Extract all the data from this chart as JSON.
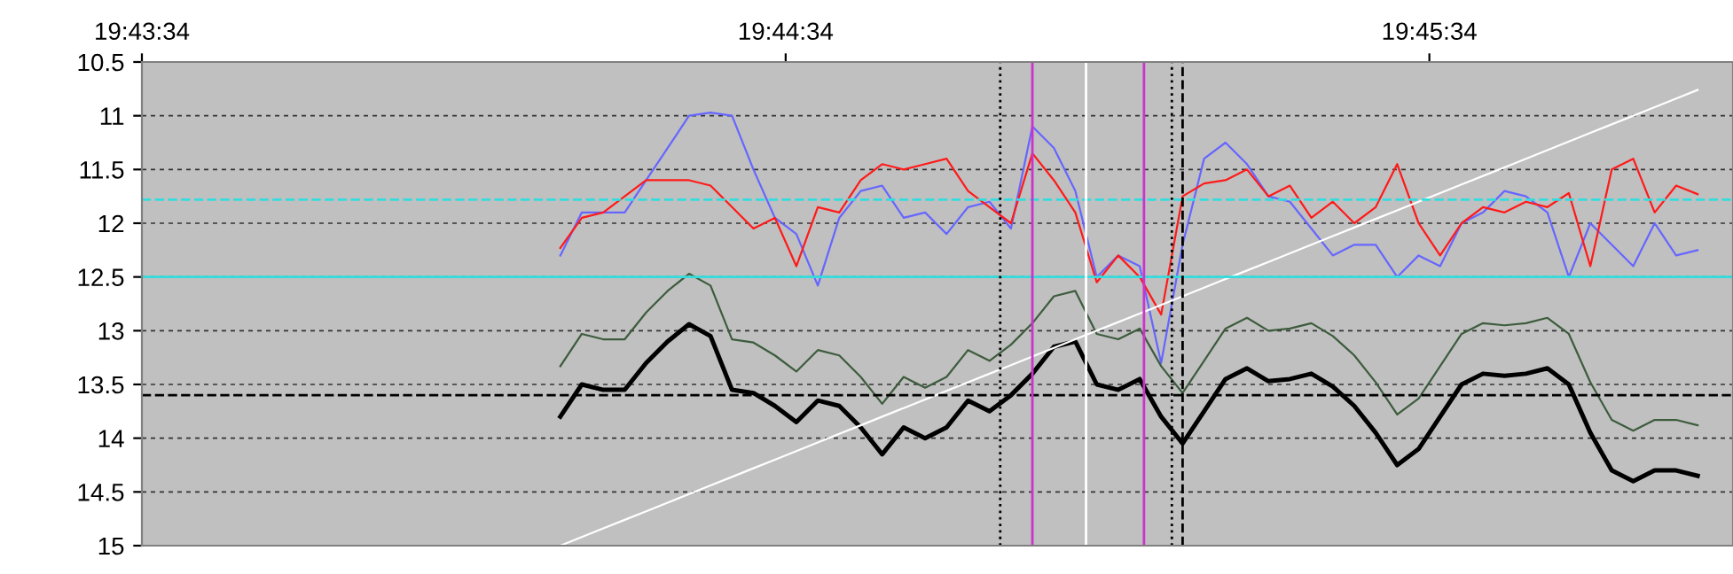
{
  "chart_data": {
    "type": "line",
    "x": [
      19.736944,
      19.7375,
      19.738055,
      19.738611,
      19.739166,
      19.739722,
      19.740277,
      19.740833,
      19.741389,
      19.741944,
      19.7425,
      19.743055,
      19.743611,
      19.744166,
      19.744722,
      19.745277,
      19.745833,
      19.746389,
      19.746944,
      19.7475,
      19.748055,
      19.748611,
      19.749166,
      19.749722,
      19.750277,
      19.750833,
      19.751389,
      19.751944,
      19.7525,
      19.753055,
      19.753611,
      19.754166,
      19.754722,
      19.755277,
      19.755833,
      19.756389,
      19.756944,
      19.7575,
      19.758055,
      19.758611,
      19.759166,
      19.759722,
      19.760277,
      19.760833,
      19.761389,
      19.761944,
      19.7625,
      19.763055,
      19.763611,
      19.764166,
      19.764722,
      19.765277,
      19.765833,
      19.766389
    ],
    "series": [
      {
        "color": "#6666ff",
        "values": [
          12.3,
          11.9,
          11.9,
          11.9,
          11.6,
          11.3,
          11.0,
          10.97,
          11.0,
          11.5,
          11.95,
          12.1,
          12.58,
          11.95,
          11.7,
          11.65,
          11.95,
          11.9,
          12.1,
          11.85,
          11.8,
          12.05,
          11.1,
          11.3,
          11.7,
          12.5,
          12.3,
          12.4,
          13.3,
          12.2,
          11.4,
          11.25,
          11.45,
          11.75,
          11.8,
          12.05,
          12.3,
          12.2,
          12.2,
          12.5,
          12.3,
          12.4,
          12.0,
          11.9,
          11.7,
          11.75,
          11.9,
          12.5,
          12.0,
          12.2,
          12.4,
          12.0,
          12.3,
          12.25
        ]
      },
      {
        "color": "#ff1a1a",
        "values": [
          12.23,
          11.95,
          11.9,
          11.75,
          11.6,
          11.6,
          11.6,
          11.65,
          11.85,
          12.05,
          11.95,
          12.4,
          11.85,
          11.9,
          11.6,
          11.45,
          11.5,
          11.45,
          11.4,
          11.7,
          11.85,
          12.0,
          11.35,
          11.6,
          11.9,
          12.55,
          12.3,
          12.5,
          12.85,
          11.75,
          11.63,
          11.6,
          11.5,
          11.75,
          11.65,
          11.95,
          11.8,
          12.0,
          11.85,
          11.45,
          12.0,
          12.3,
          12.0,
          11.85,
          11.9,
          11.8,
          11.85,
          11.72,
          12.4,
          11.5,
          11.4,
          11.9,
          11.65,
          11.73
        ]
      },
      {
        "color": "#3d5c3d",
        "values": [
          13.33,
          13.03,
          13.08,
          13.08,
          12.83,
          12.63,
          12.47,
          12.58,
          13.08,
          13.11,
          13.23,
          13.38,
          13.18,
          13.23,
          13.43,
          13.68,
          13.43,
          13.53,
          13.43,
          13.18,
          13.28,
          13.13,
          12.93,
          12.68,
          12.63,
          13.03,
          13.08,
          12.98,
          13.33,
          13.58,
          13.28,
          12.98,
          12.88,
          13.0,
          12.98,
          12.93,
          13.05,
          13.23,
          13.48,
          13.78,
          13.63,
          13.33,
          13.03,
          12.93,
          12.95,
          12.93,
          12.88,
          13.03,
          13.48,
          13.83,
          13.93,
          13.83,
          13.83,
          13.88
        ]
      },
      {
        "color": "#000000",
        "values": [
          13.8,
          13.5,
          13.55,
          13.55,
          13.3,
          13.1,
          12.94,
          13.05,
          13.55,
          13.58,
          13.7,
          13.85,
          13.65,
          13.7,
          13.9,
          14.15,
          13.9,
          14.0,
          13.9,
          13.65,
          13.75,
          13.6,
          13.4,
          13.15,
          13.1,
          13.5,
          13.55,
          13.45,
          13.8,
          14.05,
          13.75,
          13.45,
          13.35,
          13.47,
          13.45,
          13.4,
          13.52,
          13.7,
          13.95,
          14.25,
          14.1,
          13.8,
          13.5,
          13.4,
          13.42,
          13.4,
          13.35,
          13.5,
          13.95,
          14.3,
          14.4,
          14.3,
          14.3,
          14.35
        ]
      },
      {
        "color": "#ffffff",
        "values": [
          15.0,
          14.92,
          14.84,
          14.76,
          14.68,
          14.6,
          14.52,
          14.44,
          14.36,
          14.28,
          14.2,
          14.12,
          14.04,
          13.96,
          13.88,
          13.8,
          13.72,
          13.64,
          13.56,
          13.48,
          13.4,
          13.32,
          13.24,
          13.16,
          13.08,
          13.0,
          12.92,
          12.84,
          12.76,
          12.68,
          12.6,
          12.52,
          12.44,
          12.36,
          12.28,
          12.2,
          12.12,
          12.04,
          11.96,
          11.88,
          11.8,
          11.72,
          11.64,
          11.56,
          11.48,
          11.4,
          11.32,
          11.24,
          11.16,
          11.08,
          11.0,
          10.92,
          10.84,
          10.76
        ]
      }
    ],
    "xlim": [
      19.726111,
      19.767305
    ],
    "xticks": [
      {
        "value": 19.726111,
        "label": "19:43:34"
      },
      {
        "value": 19.742778,
        "label": "19:44:34"
      },
      {
        "value": 19.759444,
        "label": "19:45:34"
      }
    ],
    "ylim": [
      15,
      10.5
    ],
    "yticks": [
      10.5,
      11,
      11.5,
      12,
      12.5,
      13,
      13.5,
      14,
      14.5,
      15
    ],
    "grid": "y",
    "legend": false,
    "ref_lines": [
      {
        "axis": "y",
        "value": 11.78,
        "color": "#33dddd",
        "line_style": "dashed"
      },
      {
        "axis": "y",
        "value": 12.5,
        "color": "#33dddd",
        "line_style": "solid"
      },
      {
        "axis": "y",
        "value": 13.6,
        "color": "#000000",
        "line_style": "dashed"
      },
      {
        "axis": "x",
        "value": 19.748333,
        "color": "#000000",
        "line_style": "dotted"
      },
      {
        "axis": "x",
        "value": 19.749166,
        "color": "#cc33cc",
        "line_style": "solid"
      },
      {
        "axis": "x",
        "value": 19.750555,
        "color": "#ffffff",
        "line_style": "solid"
      },
      {
        "axis": "x",
        "value": 19.752055,
        "color": "#cc33cc",
        "line_style": "solid"
      },
      {
        "axis": "x",
        "value": 19.752777,
        "color": "#000000",
        "line_style": "dotted"
      },
      {
        "axis": "x",
        "value": 19.753055,
        "color": "#000000",
        "line_style": "dashed"
      }
    ]
  }
}
